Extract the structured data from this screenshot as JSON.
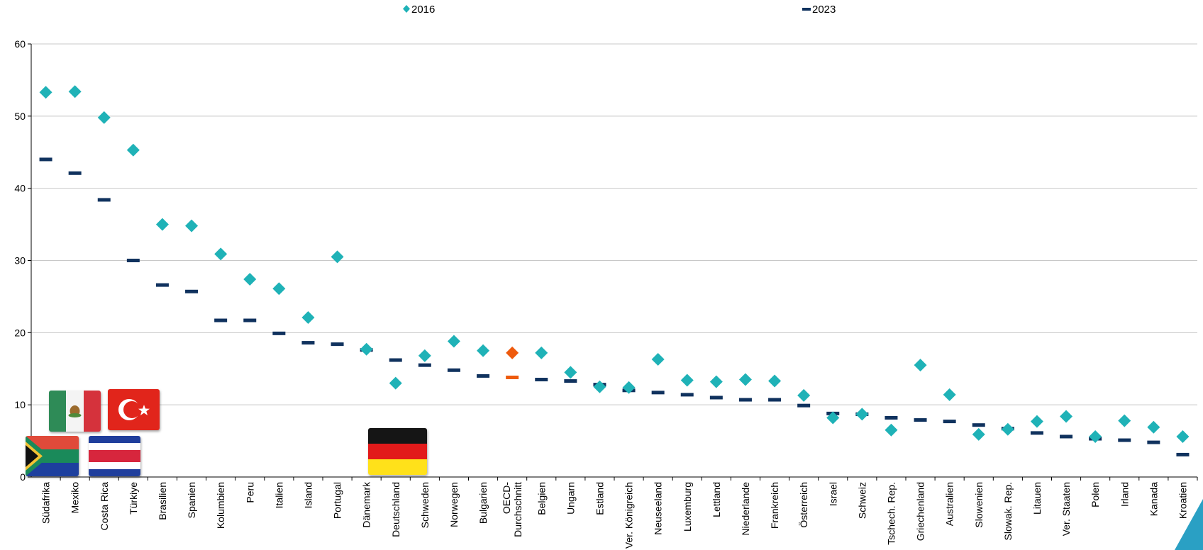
{
  "chart_data": {
    "type": "scatter",
    "ylim": [
      0,
      60
    ],
    "yticks": [
      0,
      10,
      20,
      30,
      40,
      50,
      60
    ],
    "grid": true,
    "legend_position": "top",
    "categories": [
      "Südafrika",
      "Mexiko",
      "Costa Rica",
      "Türkiye",
      "Brasilien",
      "Spanien",
      "Kolumbien",
      "Peru",
      "Italien",
      "Island",
      "Portugal",
      "Dänemark",
      "Deutschland",
      "Schweden",
      "Norwegen",
      "Bulgarien",
      "OECD-Durchschnitt",
      "Belgien",
      "Ungarn",
      "Estland",
      "Ver. Königreich",
      "Neuseeland",
      "Luxemburg",
      "Lettland",
      "Niederlande",
      "Frankreich",
      "Österreich",
      "Israel",
      "Schweiz",
      "Tschech. Rep.",
      "Griechenland",
      "Australien",
      "Slowenien",
      "Slowak. Rep.",
      "Litauen",
      "Ver. Staaten",
      "Polen",
      "Irland",
      "Kanada",
      "Kroatien"
    ],
    "category_lines": [
      [
        "Südafrika"
      ],
      [
        "Mexiko"
      ],
      [
        "Costa Rica"
      ],
      [
        "Türkiye"
      ],
      [
        "Brasilien"
      ],
      [
        "Spanien"
      ],
      [
        "Kolumbien"
      ],
      [
        "Peru"
      ],
      [
        "Italien"
      ],
      [
        "Island"
      ],
      [
        "Portugal"
      ],
      [
        "Dänemark"
      ],
      [
        "Deutschland"
      ],
      [
        "Schweden"
      ],
      [
        "Norwegen"
      ],
      [
        "Bulgarien"
      ],
      [
        "OECD-",
        "Durchschnitt"
      ],
      [
        "Belgien"
      ],
      [
        "Ungarn"
      ],
      [
        "Estland"
      ],
      [
        "Ver. Königreich"
      ],
      [
        "Neuseeland"
      ],
      [
        "Luxemburg"
      ],
      [
        "Lettland"
      ],
      [
        "Niederlande"
      ],
      [
        "Frankreich"
      ],
      [
        "Österreich"
      ],
      [
        "Israel"
      ],
      [
        "Schweiz"
      ],
      [
        "Tschech. Rep."
      ],
      [
        "Griechenland"
      ],
      [
        "Australien"
      ],
      [
        "Slowenien"
      ],
      [
        "Slowak. Rep."
      ],
      [
        "Litauen"
      ],
      [
        "Ver. Staaten"
      ],
      [
        "Polen"
      ],
      [
        "Irland"
      ],
      [
        "Kanada"
      ],
      [
        "Kroatien"
      ]
    ],
    "highlight_category": "OECD-Durchschnitt",
    "series": [
      {
        "name": "2016",
        "marker": "diamond",
        "color": "#1FB2B7",
        "highlight_color": "#EE5A0D",
        "values": [
          53.3,
          53.4,
          49.8,
          45.3,
          35.0,
          34.8,
          30.9,
          27.4,
          26.1,
          22.1,
          30.5,
          17.7,
          13.0,
          16.8,
          18.8,
          17.5,
          17.2,
          17.2,
          14.5,
          12.5,
          12.4,
          16.3,
          13.4,
          13.2,
          13.5,
          13.3,
          11.3,
          8.2,
          8.7,
          6.5,
          15.5,
          11.4,
          5.9,
          6.6,
          7.7,
          8.4,
          5.6,
          7.8,
          6.9,
          5.6
        ]
      },
      {
        "name": "2023",
        "marker": "dash",
        "color": "#10325E",
        "highlight_color": "#EE5A0D",
        "values": [
          44.0,
          42.1,
          38.4,
          30.0,
          26.6,
          25.7,
          21.7,
          21.7,
          19.9,
          18.6,
          18.4,
          17.6,
          16.2,
          15.5,
          14.8,
          14.0,
          13.8,
          13.5,
          13.3,
          12.8,
          12.0,
          11.7,
          11.4,
          11.0,
          10.7,
          10.7,
          9.9,
          8.8,
          8.7,
          8.2,
          7.9,
          7.7,
          7.2,
          6.7,
          6.1,
          5.6,
          5.3,
          5.1,
          4.8,
          3.1
        ]
      }
    ]
  },
  "flags": {
    "south_africa": "Südafrika",
    "mexico": "Mexiko",
    "costa_rica": "Costa Rica",
    "turkiye": "Türkiye",
    "germany": "Deutschland"
  }
}
